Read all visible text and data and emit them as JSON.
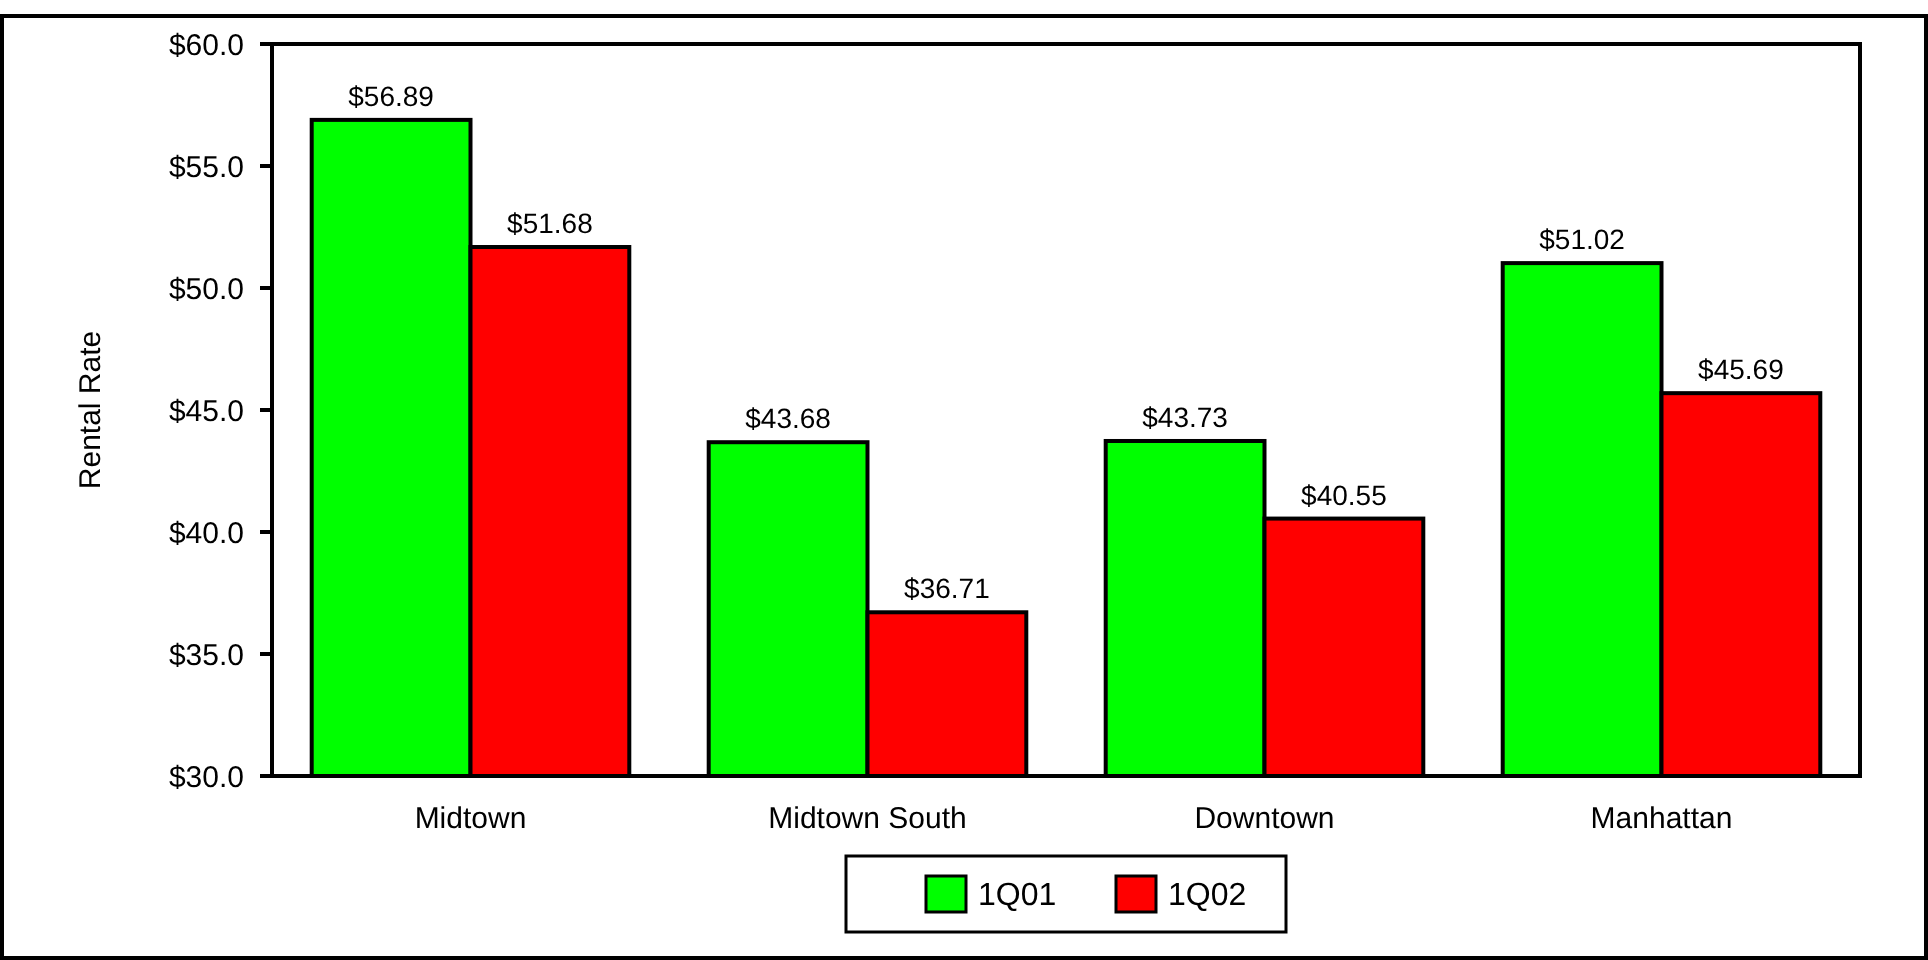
{
  "chart_data": {
    "type": "bar",
    "ylabel": "Rental Rate",
    "categories": [
      "Midtown",
      "Midtown South",
      "Downtown",
      "Manhattan"
    ],
    "series": [
      {
        "name": "1Q01",
        "color": "#00ff00",
        "values": [
          56.89,
          43.68,
          43.73,
          51.02
        ],
        "value_labels": [
          "$56.89",
          "$43.68",
          "$43.73",
          "$51.02"
        ]
      },
      {
        "name": "1Q02",
        "color": "#ff0000",
        "values": [
          51.68,
          36.71,
          40.55,
          45.69
        ],
        "value_labels": [
          "$51.68",
          "$36.71",
          "$40.55",
          "$45.69"
        ]
      }
    ],
    "ylim": [
      30,
      60
    ],
    "yticks": [
      {
        "value": 30,
        "label": "$30.0"
      },
      {
        "value": 35,
        "label": "$35.0"
      },
      {
        "value": 40,
        "label": "$40.0"
      },
      {
        "value": 45,
        "label": "$45.0"
      },
      {
        "value": 50,
        "label": "$50.0"
      },
      {
        "value": 55,
        "label": "$55.0"
      },
      {
        "value": 60,
        "label": "$60.0"
      }
    ],
    "grid": false,
    "legend": "bottom"
  }
}
